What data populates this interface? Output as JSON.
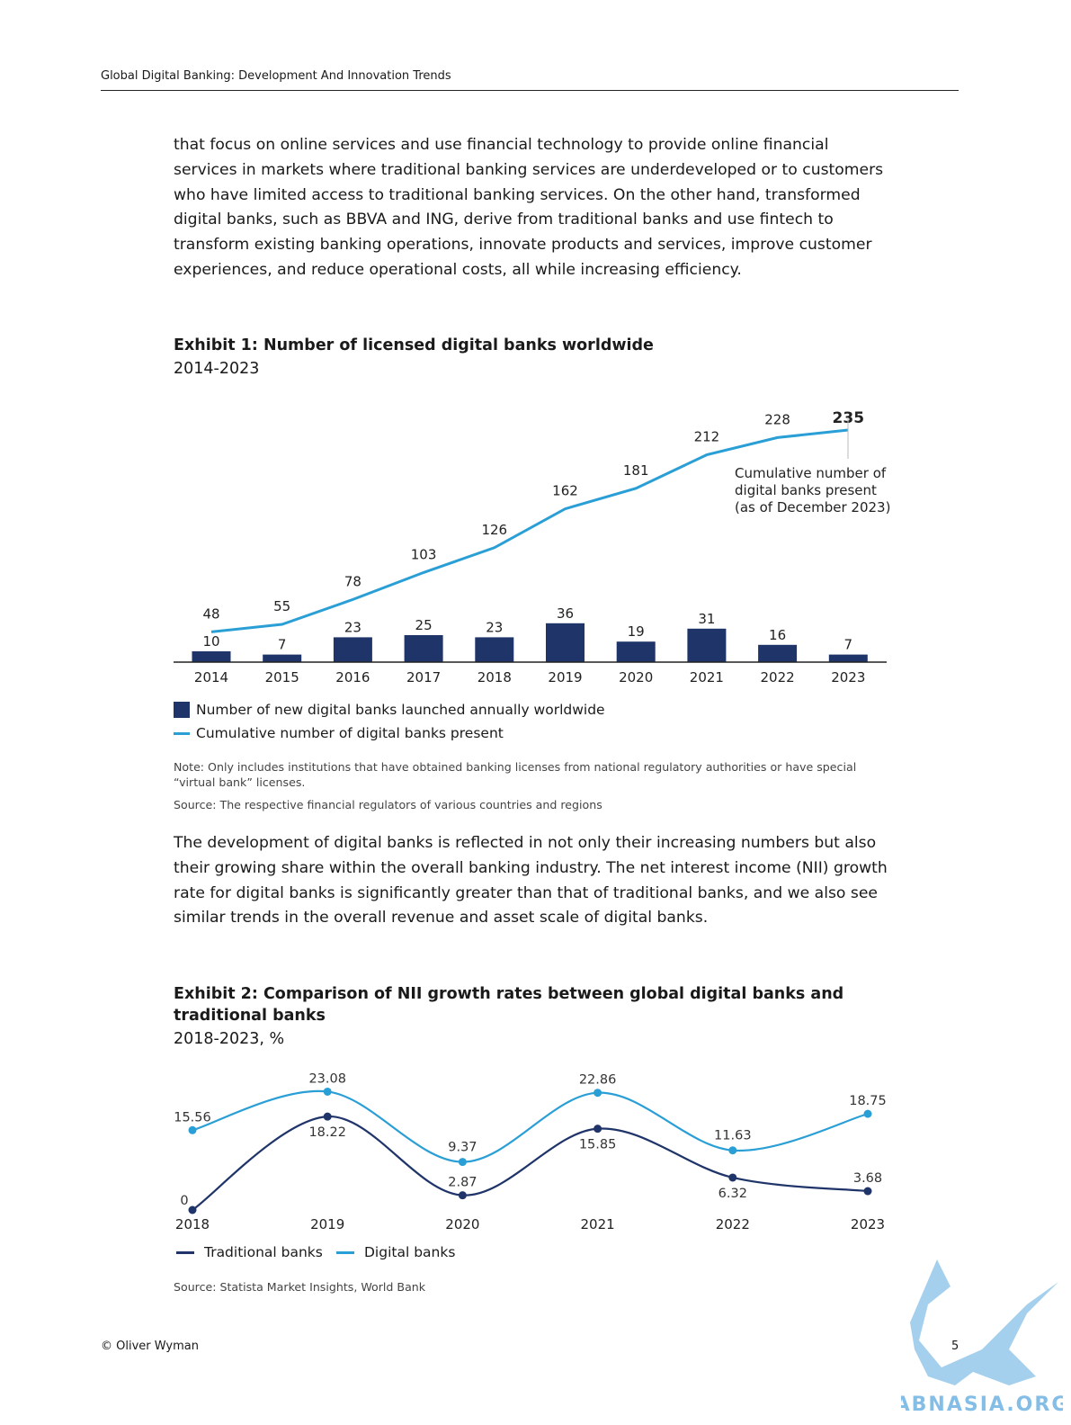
{
  "header": {
    "title": "Global Digital Banking: Development And Innovation Trends"
  },
  "intro_paragraph": "that focus on online services and use financial technology to provide online financial services in markets where traditional banking services are underdeveloped or to customers who have limited access to traditional banking services. On the other hand, transformed digital banks, such as BBVA and ING, derive from traditional banks and use fintech to transform existing banking operations, innovate products and services, improve customer experiences, and reduce operational costs, all while increasing efficiency.",
  "exhibit1": {
    "title": "Exhibit 1: Number of licensed digital banks worldwide",
    "subtitle": "2014-2023",
    "annotation": [
      "Cumulative number of",
      "digital banks present",
      "(as of December 2023)"
    ],
    "legend": {
      "bars": "Number of new digital banks launched annually worldwide",
      "line": "Cumulative number of digital banks present"
    },
    "note": "Note: Only includes institutions that have obtained banking licenses from national regulatory authorities or have special “virtual bank” licenses.",
    "source": "Source: The respective financial regulators of various countries and regions"
  },
  "middle_paragraph": "The development of digital banks is reflected in not only their increasing numbers but also their growing share within the overall banking industry. The net interest income (NII) growth rate for digital banks is significantly greater than that of traditional banks, and we also see similar trends in the overall revenue and asset scale of digital banks.",
  "exhibit2": {
    "title_line1": "Exhibit 2: Comparison of NII growth rates between global digital banks and",
    "title_line2": "traditional banks",
    "subtitle": "2018-2023, %",
    "legend": {
      "traditional": "Traditional banks",
      "digital": "Digital banks"
    },
    "source": "Source: Statista Market Insights, World Bank"
  },
  "footer": {
    "copyright": "© Oliver Wyman",
    "page": "5"
  },
  "watermark": {
    "text": "ABNASIA.ORG"
  },
  "colors": {
    "navy": "#1f3469",
    "blue": "#2a9fd6"
  },
  "chart_data": [
    {
      "type": "bar+line",
      "categories": [
        "2014",
        "2015",
        "2016",
        "2017",
        "2018",
        "2019",
        "2020",
        "2021",
        "2022",
        "2023"
      ],
      "series": [
        {
          "name": "Number of new digital banks launched annually worldwide",
          "type": "bar",
          "values": [
            10,
            7,
            23,
            25,
            23,
            36,
            19,
            31,
            16,
            7
          ]
        },
        {
          "name": "Cumulative number of digital banks present",
          "type": "line",
          "values": [
            48,
            55,
            78,
            103,
            126,
            162,
            181,
            212,
            228,
            235
          ]
        }
      ],
      "legend_position": "bottom-left",
      "grid": false
    },
    {
      "type": "line",
      "categories": [
        "2018",
        "2019",
        "2020",
        "2021",
        "2022",
        "2023"
      ],
      "series": [
        {
          "name": "Traditional banks",
          "values": [
            0,
            18.22,
            2.87,
            15.85,
            6.32,
            3.68
          ]
        },
        {
          "name": "Digital banks",
          "values": [
            15.56,
            23.08,
            9.37,
            22.86,
            11.63,
            18.75
          ]
        }
      ],
      "legend_position": "bottom-left",
      "grid": false
    }
  ]
}
